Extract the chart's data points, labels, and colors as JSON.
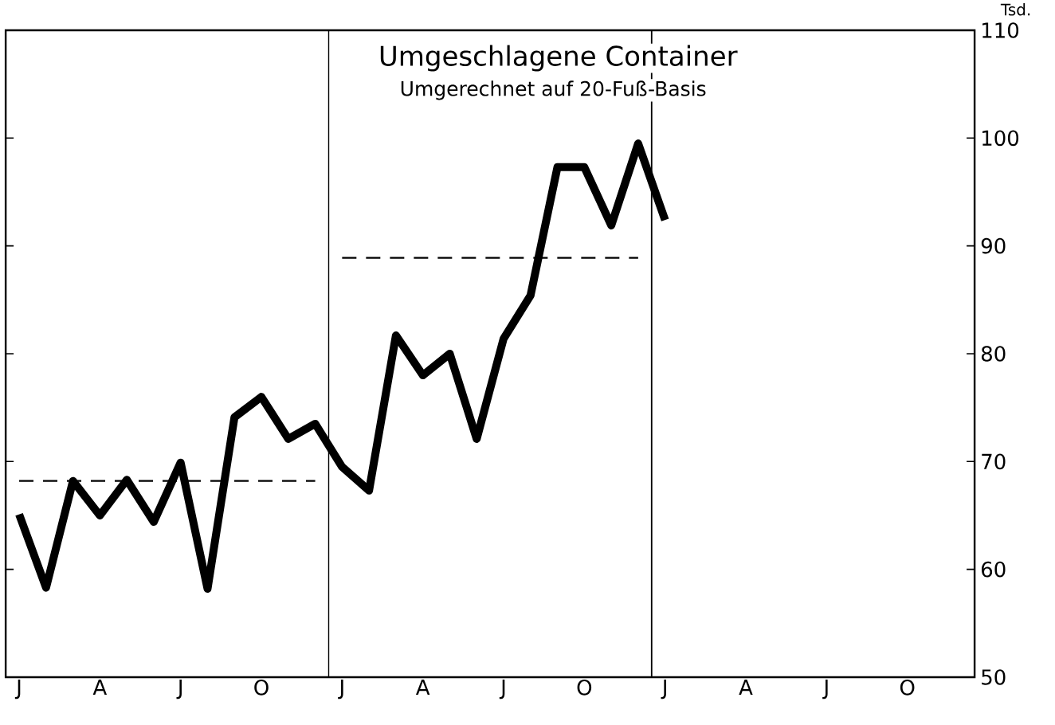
{
  "chart_data": {
    "type": "line",
    "title": "Umgeschlagene Container",
    "subtitle": "Umgerechnet auf 20-Fuß-Basis",
    "ylabel": "Tsd.",
    "categories": [
      "J",
      null,
      null,
      "A",
      null,
      null,
      "J",
      null,
      null,
      "O",
      null,
      null,
      "J",
      null,
      null,
      "A",
      null,
      null,
      "J",
      null,
      null,
      "O",
      null,
      null,
      "J",
      null,
      null,
      "A",
      null,
      null,
      "J",
      null,
      null,
      "O",
      null,
      null
    ],
    "ylim": [
      50,
      110
    ],
    "yticks": [
      50,
      60,
      70,
      80,
      90,
      100,
      110
    ],
    "series": [
      {
        "color": "#000000",
        "line_style": "solid",
        "values": [
          65.1,
          58.3,
          68.2,
          65.0,
          68.3,
          64.4,
          69.9,
          58.2,
          74.1,
          76.0,
          72.1,
          73.5,
          69.5,
          67.3,
          81.7,
          78.0,
          80.0,
          72.1,
          81.4,
          85.4,
          97.3,
          97.3,
          91.9,
          99.5,
          92.4,
          null,
          null,
          null,
          null,
          null,
          null,
          null,
          null,
          null,
          null,
          null
        ]
      },
      {
        "color": "#000000",
        "line_style": "dashed",
        "values": [
          68.2,
          68.2,
          68.2,
          68.2,
          68.2,
          68.2,
          68.2,
          68.2,
          68.2,
          68.2,
          68.2,
          68.2,
          null,
          null,
          null,
          null,
          null,
          null,
          null,
          null,
          null,
          null,
          null,
          null,
          null,
          null,
          null,
          null,
          null,
          null,
          null,
          null,
          null,
          null,
          null,
          null
        ]
      },
      {
        "color": "#000000",
        "line_style": "dashed",
        "values": [
          null,
          null,
          null,
          null,
          null,
          null,
          null,
          null,
          null,
          null,
          null,
          null,
          88.9,
          88.9,
          88.9,
          88.9,
          88.9,
          88.9,
          88.9,
          88.9,
          88.9,
          88.9,
          88.9,
          88.9,
          null,
          null,
          null,
          null,
          null,
          null,
          null,
          null,
          null,
          null,
          null,
          null
        ]
      }
    ]
  }
}
